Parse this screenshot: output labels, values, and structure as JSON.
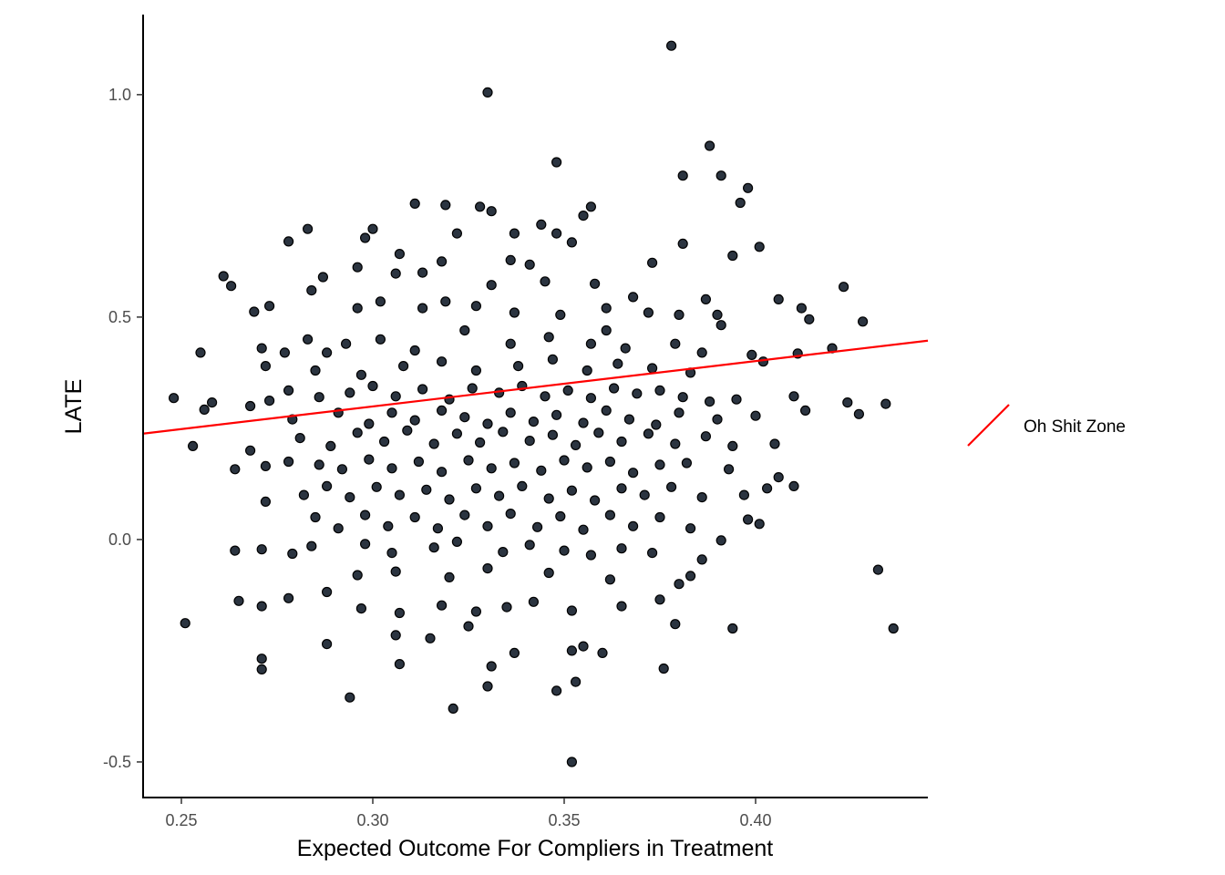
{
  "chart_data": {
    "type": "scatter",
    "xlabel": "Expected Outcome For Compliers in Treatment",
    "ylabel": "LATE",
    "xlim": [
      0.24,
      0.445
    ],
    "ylim": [
      -0.58,
      1.18
    ],
    "x_ticks": [
      "0.25",
      "0.30",
      "0.35",
      "0.40"
    ],
    "x_tick_values": [
      0.25,
      0.3,
      0.35,
      0.4
    ],
    "y_ticks": [
      "-0.5",
      "0.0",
      "0.5",
      "1.0"
    ],
    "y_tick_values": [
      -0.5,
      0.0,
      0.5,
      1.0
    ],
    "grid": false,
    "legend_position": "right",
    "colors": {
      "points": "#2b3440",
      "point_outline": "#000000",
      "line": "#ff0000",
      "axis": "#000000"
    },
    "regression_line": {
      "name": "Oh Shit Zone",
      "color": "#ff0000",
      "x": [
        0.24,
        0.445
      ],
      "y": [
        0.238,
        0.447
      ]
    },
    "legend": [
      {
        "label": "Oh Shit Zone",
        "symbol": "line",
        "color": "#ff0000"
      }
    ],
    "points": [
      [
        0.378,
        1.11
      ],
      [
        0.33,
        1.005
      ],
      [
        0.388,
        0.885
      ],
      [
        0.348,
        0.848
      ],
      [
        0.381,
        0.818
      ],
      [
        0.391,
        0.818
      ],
      [
        0.398,
        0.79
      ],
      [
        0.396,
        0.757
      ],
      [
        0.311,
        0.755
      ],
      [
        0.319,
        0.752
      ],
      [
        0.328,
        0.748
      ],
      [
        0.357,
        0.748
      ],
      [
        0.331,
        0.738
      ],
      [
        0.355,
        0.728
      ],
      [
        0.344,
        0.708
      ],
      [
        0.3,
        0.698
      ],
      [
        0.283,
        0.698
      ],
      [
        0.348,
        0.688
      ],
      [
        0.337,
        0.688
      ],
      [
        0.322,
        0.688
      ],
      [
        0.298,
        0.678
      ],
      [
        0.278,
        0.67
      ],
      [
        0.352,
        0.668
      ],
      [
        0.381,
        0.665
      ],
      [
        0.401,
        0.658
      ],
      [
        0.307,
        0.642
      ],
      [
        0.394,
        0.638
      ],
      [
        0.336,
        0.628
      ],
      [
        0.318,
        0.625
      ],
      [
        0.373,
        0.622
      ],
      [
        0.341,
        0.618
      ],
      [
        0.261,
        0.592
      ],
      [
        0.263,
        0.57
      ],
      [
        0.287,
        0.59
      ],
      [
        0.296,
        0.612
      ],
      [
        0.306,
        0.598
      ],
      [
        0.313,
        0.6
      ],
      [
        0.423,
        0.568
      ],
      [
        0.406,
        0.54
      ],
      [
        0.387,
        0.54
      ],
      [
        0.368,
        0.545
      ],
      [
        0.331,
        0.572
      ],
      [
        0.345,
        0.58
      ],
      [
        0.358,
        0.575
      ],
      [
        0.273,
        0.525
      ],
      [
        0.269,
        0.512
      ],
      [
        0.284,
        0.56
      ],
      [
        0.296,
        0.52
      ],
      [
        0.302,
        0.535
      ],
      [
        0.313,
        0.52
      ],
      [
        0.319,
        0.535
      ],
      [
        0.327,
        0.525
      ],
      [
        0.337,
        0.51
      ],
      [
        0.349,
        0.505
      ],
      [
        0.361,
        0.52
      ],
      [
        0.372,
        0.51
      ],
      [
        0.38,
        0.505
      ],
      [
        0.412,
        0.52
      ],
      [
        0.414,
        0.495
      ],
      [
        0.428,
        0.49
      ],
      [
        0.39,
        0.505
      ],
      [
        0.391,
        0.482
      ],
      [
        0.361,
        0.47
      ],
      [
        0.283,
        0.45
      ],
      [
        0.288,
        0.42
      ],
      [
        0.293,
        0.44
      ],
      [
        0.255,
        0.42
      ],
      [
        0.271,
        0.43
      ],
      [
        0.277,
        0.42
      ],
      [
        0.302,
        0.45
      ],
      [
        0.311,
        0.425
      ],
      [
        0.324,
        0.47
      ],
      [
        0.336,
        0.44
      ],
      [
        0.346,
        0.455
      ],
      [
        0.357,
        0.44
      ],
      [
        0.366,
        0.43
      ],
      [
        0.379,
        0.44
      ],
      [
        0.386,
        0.42
      ],
      [
        0.399,
        0.415
      ],
      [
        0.411,
        0.418
      ],
      [
        0.42,
        0.43
      ],
      [
        0.272,
        0.39
      ],
      [
        0.285,
        0.38
      ],
      [
        0.297,
        0.37
      ],
      [
        0.308,
        0.39
      ],
      [
        0.318,
        0.4
      ],
      [
        0.327,
        0.38
      ],
      [
        0.338,
        0.39
      ],
      [
        0.347,
        0.405
      ],
      [
        0.356,
        0.38
      ],
      [
        0.364,
        0.395
      ],
      [
        0.373,
        0.385
      ],
      [
        0.383,
        0.375
      ],
      [
        0.402,
        0.4
      ],
      [
        0.248,
        0.318
      ],
      [
        0.258,
        0.308
      ],
      [
        0.268,
        0.3
      ],
      [
        0.273,
        0.312
      ],
      [
        0.278,
        0.335
      ],
      [
        0.286,
        0.32
      ],
      [
        0.294,
        0.33
      ],
      [
        0.3,
        0.345
      ],
      [
        0.306,
        0.322
      ],
      [
        0.313,
        0.338
      ],
      [
        0.32,
        0.315
      ],
      [
        0.326,
        0.34
      ],
      [
        0.333,
        0.33
      ],
      [
        0.339,
        0.345
      ],
      [
        0.345,
        0.322
      ],
      [
        0.351,
        0.335
      ],
      [
        0.357,
        0.318
      ],
      [
        0.363,
        0.34
      ],
      [
        0.369,
        0.328
      ],
      [
        0.375,
        0.335
      ],
      [
        0.381,
        0.32
      ],
      [
        0.388,
        0.31
      ],
      [
        0.395,
        0.315
      ],
      [
        0.41,
        0.322
      ],
      [
        0.424,
        0.308
      ],
      [
        0.434,
        0.305
      ],
      [
        0.256,
        0.292
      ],
      [
        0.279,
        0.27
      ],
      [
        0.291,
        0.285
      ],
      [
        0.299,
        0.26
      ],
      [
        0.305,
        0.285
      ],
      [
        0.311,
        0.268
      ],
      [
        0.318,
        0.29
      ],
      [
        0.324,
        0.275
      ],
      [
        0.33,
        0.26
      ],
      [
        0.336,
        0.285
      ],
      [
        0.342,
        0.265
      ],
      [
        0.348,
        0.28
      ],
      [
        0.355,
        0.262
      ],
      [
        0.361,
        0.29
      ],
      [
        0.367,
        0.27
      ],
      [
        0.374,
        0.258
      ],
      [
        0.38,
        0.285
      ],
      [
        0.39,
        0.27
      ],
      [
        0.4,
        0.278
      ],
      [
        0.413,
        0.29
      ],
      [
        0.427,
        0.282
      ],
      [
        0.253,
        0.21
      ],
      [
        0.268,
        0.2
      ],
      [
        0.281,
        0.228
      ],
      [
        0.289,
        0.21
      ],
      [
        0.296,
        0.24
      ],
      [
        0.303,
        0.22
      ],
      [
        0.309,
        0.245
      ],
      [
        0.316,
        0.215
      ],
      [
        0.322,
        0.238
      ],
      [
        0.328,
        0.218
      ],
      [
        0.334,
        0.242
      ],
      [
        0.341,
        0.222
      ],
      [
        0.347,
        0.235
      ],
      [
        0.353,
        0.212
      ],
      [
        0.359,
        0.24
      ],
      [
        0.365,
        0.22
      ],
      [
        0.372,
        0.238
      ],
      [
        0.379,
        0.215
      ],
      [
        0.387,
        0.232
      ],
      [
        0.394,
        0.21
      ],
      [
        0.405,
        0.215
      ],
      [
        0.264,
        0.158
      ],
      [
        0.272,
        0.165
      ],
      [
        0.278,
        0.175
      ],
      [
        0.286,
        0.168
      ],
      [
        0.292,
        0.158
      ],
      [
        0.299,
        0.18
      ],
      [
        0.305,
        0.16
      ],
      [
        0.312,
        0.175
      ],
      [
        0.318,
        0.152
      ],
      [
        0.325,
        0.178
      ],
      [
        0.331,
        0.16
      ],
      [
        0.337,
        0.172
      ],
      [
        0.344,
        0.155
      ],
      [
        0.35,
        0.178
      ],
      [
        0.356,
        0.162
      ],
      [
        0.362,
        0.175
      ],
      [
        0.368,
        0.15
      ],
      [
        0.375,
        0.168
      ],
      [
        0.382,
        0.172
      ],
      [
        0.393,
        0.158
      ],
      [
        0.406,
        0.14
      ],
      [
        0.41,
        0.12
      ],
      [
        0.272,
        0.085
      ],
      [
        0.282,
        0.1
      ],
      [
        0.288,
        0.12
      ],
      [
        0.294,
        0.095
      ],
      [
        0.301,
        0.118
      ],
      [
        0.307,
        0.1
      ],
      [
        0.314,
        0.112
      ],
      [
        0.32,
        0.09
      ],
      [
        0.327,
        0.115
      ],
      [
        0.333,
        0.098
      ],
      [
        0.339,
        0.12
      ],
      [
        0.346,
        0.092
      ],
      [
        0.352,
        0.11
      ],
      [
        0.358,
        0.088
      ],
      [
        0.365,
        0.115
      ],
      [
        0.371,
        0.1
      ],
      [
        0.378,
        0.118
      ],
      [
        0.386,
        0.095
      ],
      [
        0.397,
        0.1
      ],
      [
        0.403,
        0.115
      ],
      [
        0.285,
        0.05
      ],
      [
        0.291,
        0.025
      ],
      [
        0.298,
        0.055
      ],
      [
        0.304,
        0.03
      ],
      [
        0.311,
        0.05
      ],
      [
        0.317,
        0.025
      ],
      [
        0.324,
        0.055
      ],
      [
        0.33,
        0.03
      ],
      [
        0.336,
        0.058
      ],
      [
        0.343,
        0.028
      ],
      [
        0.349,
        0.052
      ],
      [
        0.355,
        0.022
      ],
      [
        0.362,
        0.055
      ],
      [
        0.368,
        0.03
      ],
      [
        0.375,
        0.05
      ],
      [
        0.383,
        0.025
      ],
      [
        0.398,
        0.045
      ],
      [
        0.401,
        0.035
      ],
      [
        0.264,
        -0.025
      ],
      [
        0.271,
        -0.022
      ],
      [
        0.279,
        -0.032
      ],
      [
        0.284,
        -0.015
      ],
      [
        0.298,
        -0.01
      ],
      [
        0.305,
        -0.03
      ],
      [
        0.316,
        -0.018
      ],
      [
        0.322,
        -0.005
      ],
      [
        0.334,
        -0.028
      ],
      [
        0.341,
        -0.012
      ],
      [
        0.35,
        -0.025
      ],
      [
        0.357,
        -0.035
      ],
      [
        0.365,
        -0.02
      ],
      [
        0.373,
        -0.03
      ],
      [
        0.386,
        -0.045
      ],
      [
        0.391,
        -0.002
      ],
      [
        0.296,
        -0.08
      ],
      [
        0.306,
        -0.072
      ],
      [
        0.32,
        -0.085
      ],
      [
        0.33,
        -0.065
      ],
      [
        0.346,
        -0.075
      ],
      [
        0.362,
        -0.09
      ],
      [
        0.38,
        -0.1
      ],
      [
        0.383,
        -0.082
      ],
      [
        0.265,
        -0.138
      ],
      [
        0.271,
        -0.15
      ],
      [
        0.278,
        -0.132
      ],
      [
        0.288,
        -0.118
      ],
      [
        0.297,
        -0.155
      ],
      [
        0.307,
        -0.165
      ],
      [
        0.318,
        -0.148
      ],
      [
        0.327,
        -0.162
      ],
      [
        0.335,
        -0.152
      ],
      [
        0.342,
        -0.14
      ],
      [
        0.352,
        -0.16
      ],
      [
        0.365,
        -0.15
      ],
      [
        0.375,
        -0.135
      ],
      [
        0.251,
        -0.188
      ],
      [
        0.288,
        -0.235
      ],
      [
        0.306,
        -0.215
      ],
      [
        0.315,
        -0.222
      ],
      [
        0.325,
        -0.195
      ],
      [
        0.337,
        -0.255
      ],
      [
        0.352,
        -0.25
      ],
      [
        0.355,
        -0.24
      ],
      [
        0.36,
        -0.255
      ],
      [
        0.379,
        -0.19
      ],
      [
        0.394,
        -0.2
      ],
      [
        0.271,
        -0.268
      ],
      [
        0.271,
        -0.292
      ],
      [
        0.307,
        -0.28
      ],
      [
        0.331,
        -0.285
      ],
      [
        0.33,
        -0.33
      ],
      [
        0.353,
        -0.32
      ],
      [
        0.376,
        -0.29
      ],
      [
        0.294,
        -0.355
      ],
      [
        0.348,
        -0.34
      ],
      [
        0.321,
        -0.38
      ],
      [
        0.352,
        -0.5
      ],
      [
        0.432,
        -0.068
      ],
      [
        0.436,
        -0.2
      ]
    ]
  }
}
